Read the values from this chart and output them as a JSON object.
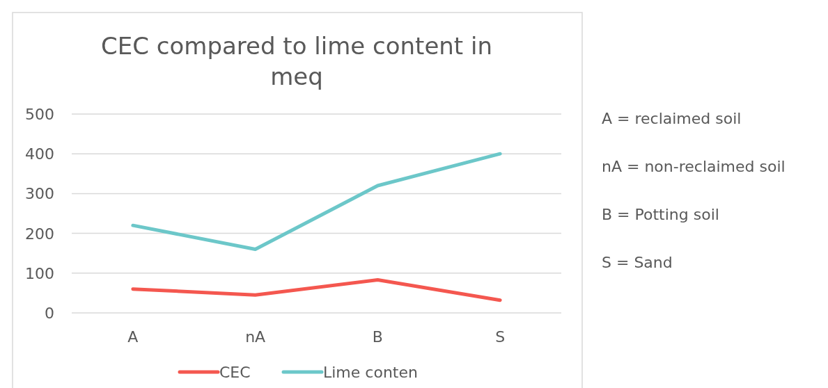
{
  "chart_data": {
    "type": "line",
    "title": "CEC compared to lime content in meq",
    "categories": [
      "A",
      "nA",
      "B",
      "S"
    ],
    "series": [
      {
        "name": "CEC",
        "color": "#f4574f",
        "values": [
          60,
          45,
          83,
          32
        ]
      },
      {
        "name": "Lime conten",
        "color": "#6cc7c9",
        "values": [
          220,
          160,
          320,
          400
        ]
      }
    ],
    "ylim": [
      0,
      500
    ],
    "yticks": [
      0,
      100,
      200,
      300,
      400,
      500
    ],
    "grid": "y",
    "legend": "bottom",
    "marker": "none",
    "line_style": "solid",
    "annotations": [
      "A = reclaimed soil",
      "nA = non-reclaimed soil",
      "B = Potting soil",
      "S = Sand"
    ]
  }
}
